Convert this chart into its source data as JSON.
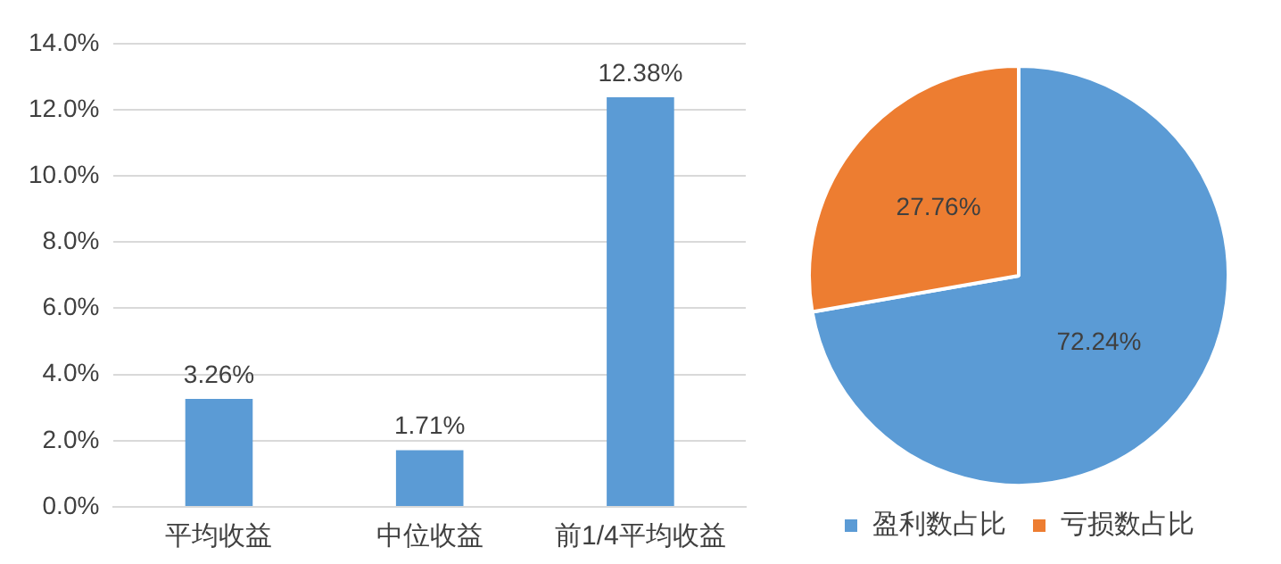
{
  "chart_data": [
    {
      "type": "bar",
      "categories": [
        "平均收益",
        "中位收益",
        "前1/4平均收益"
      ],
      "values": [
        3.26,
        1.71,
        12.38
      ],
      "color": "#5b9bd5",
      "value_labels": [
        "3.26%",
        "1.71%",
        "12.38%"
      ],
      "ylim": [
        0,
        14
      ],
      "yticks": [
        {
          "value": 0,
          "label": "0.0%"
        },
        {
          "value": 2,
          "label": "2.0%"
        },
        {
          "value": 4,
          "label": "4.0%"
        },
        {
          "value": 6,
          "label": "6.0%"
        },
        {
          "value": 8,
          "label": "8.0%"
        },
        {
          "value": 10,
          "label": "10.0%"
        },
        {
          "value": 12,
          "label": "12.0%"
        },
        {
          "value": 14,
          "label": "14.0%"
        }
      ],
      "grid": "y",
      "legend": false
    },
    {
      "type": "pie",
      "categories": [
        "盈利数占比",
        "亏损数占比"
      ],
      "values": [
        72.24,
        27.76
      ],
      "colors": [
        "#5b9bd5",
        "#ed7d31"
      ],
      "value_labels": [
        "72.24%",
        "27.76%"
      ],
      "legend": "bottom"
    }
  ]
}
